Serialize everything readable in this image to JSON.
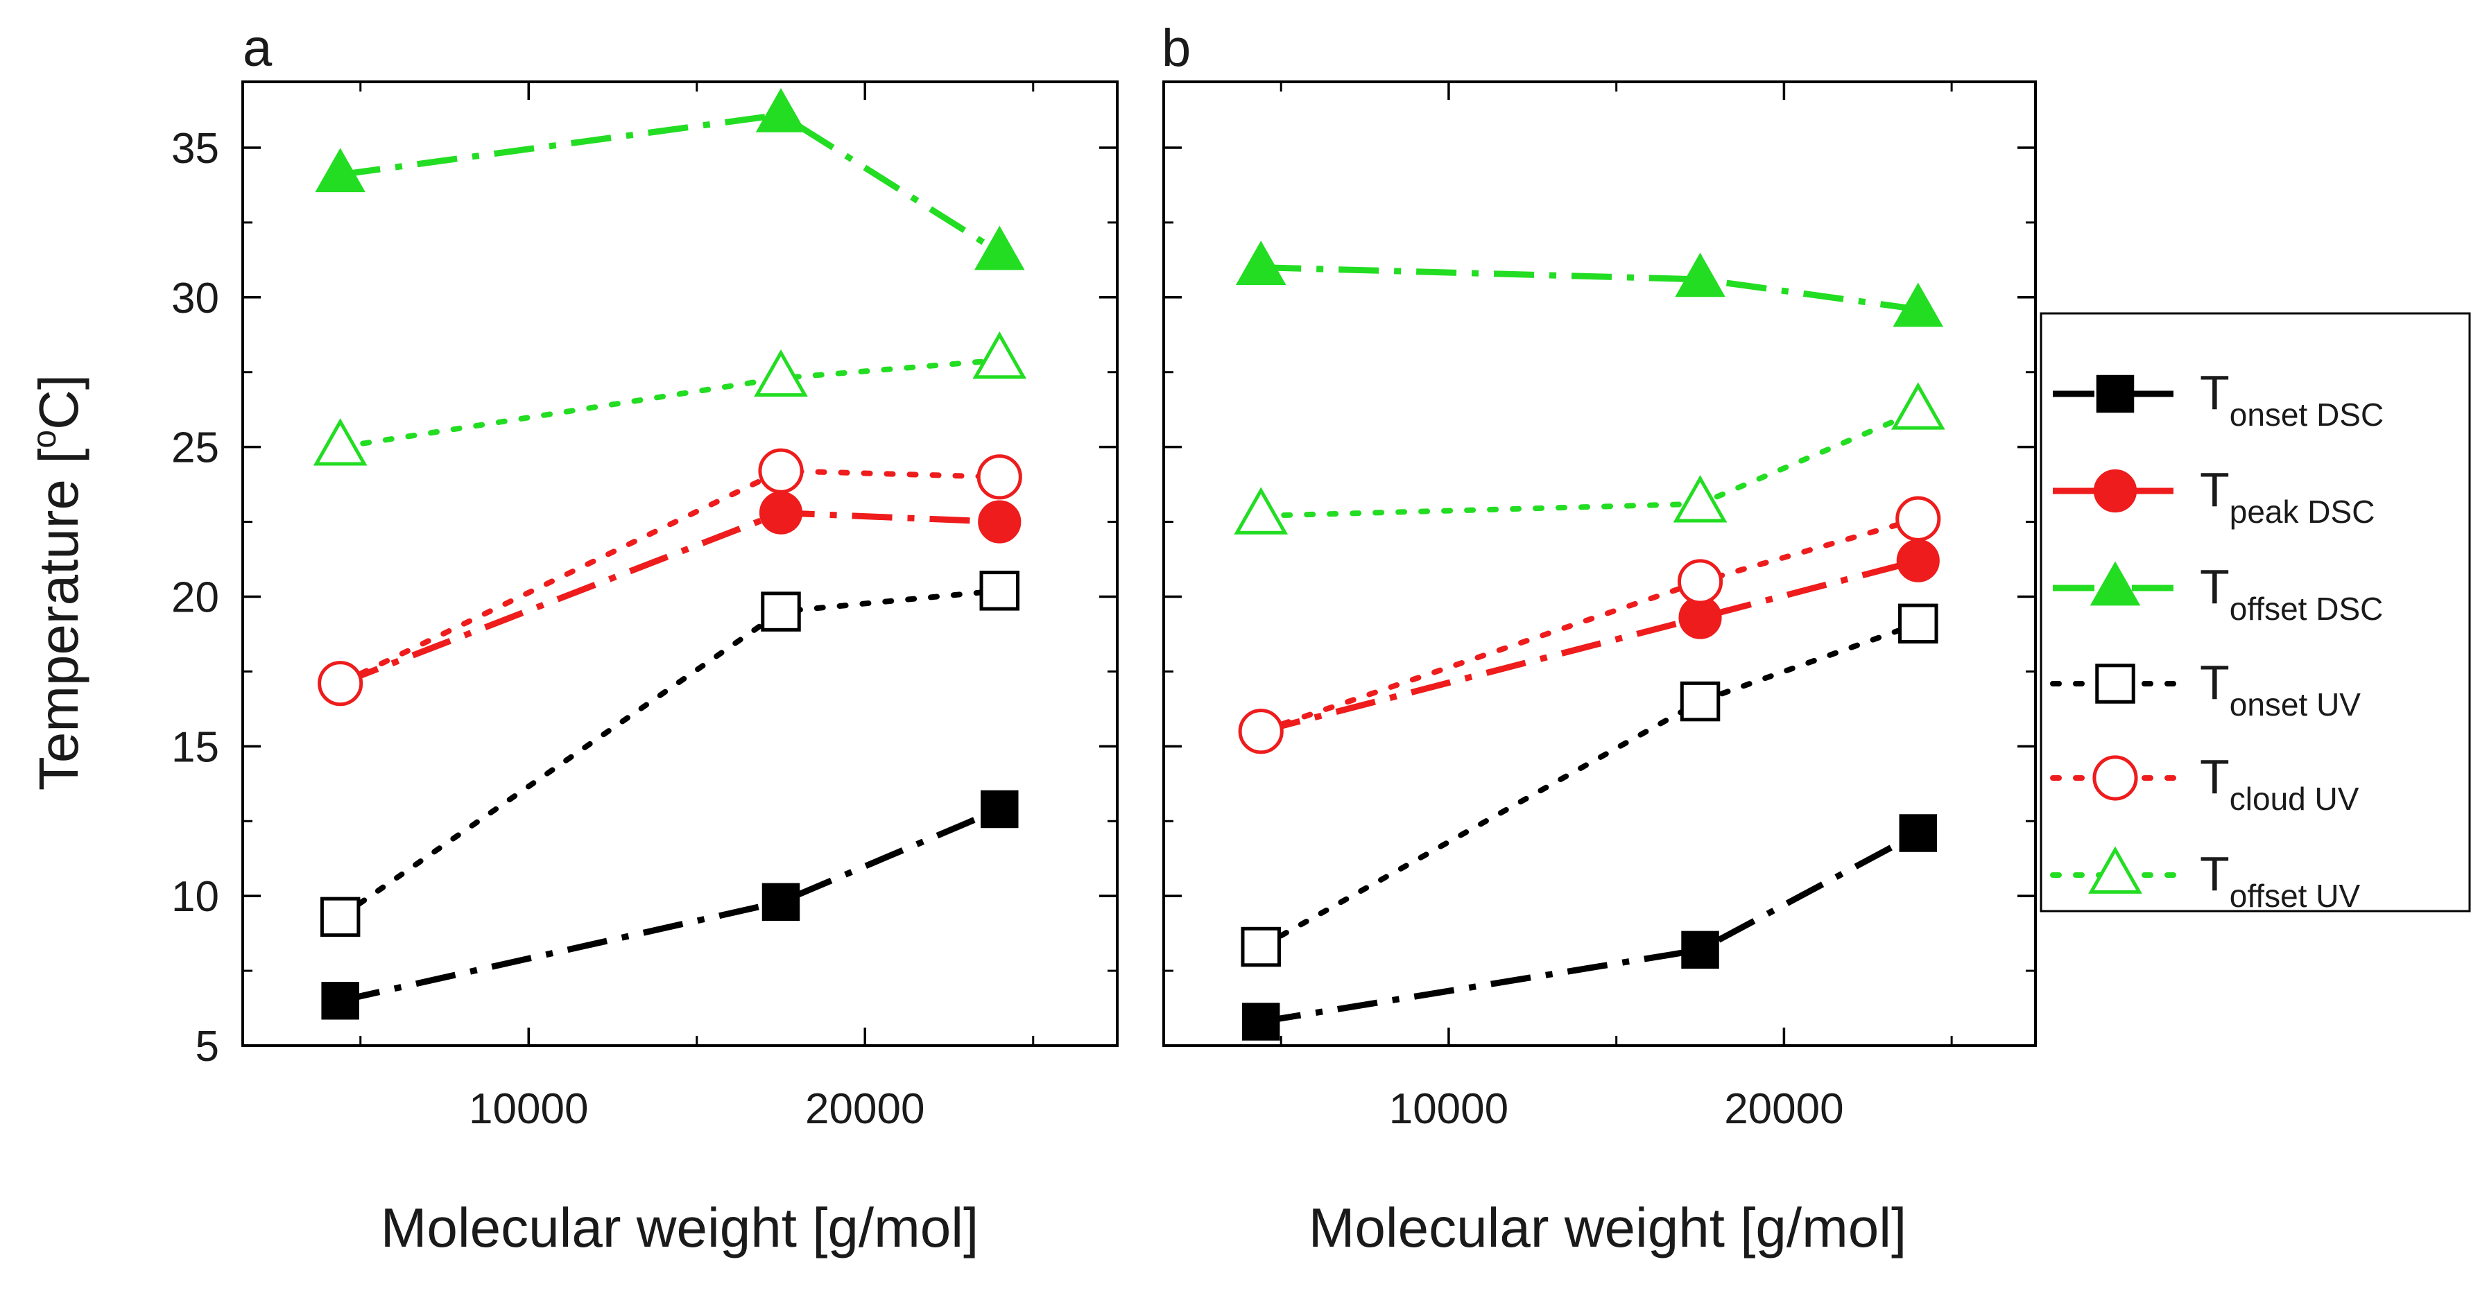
{
  "figure": {
    "panel_labels": [
      "a",
      "b"
    ],
    "y_label": "Temperature [",
    "y_label_sup": "o",
    "y_label_tail": "C]",
    "x_label": "Molecular weight [g/mol]"
  },
  "legend": [
    {
      "main": "T",
      "sub": "onset DSC"
    },
    {
      "main": "T",
      "sub": "peak  DSC"
    },
    {
      "main": "T",
      "sub": "offset DSC"
    },
    {
      "main": "T",
      "sub": "onset UV"
    },
    {
      "main": "T",
      "sub": "cloud UV"
    },
    {
      "main": "T",
      "sub": "offset UV"
    }
  ],
  "chart_data": [
    {
      "type": "line",
      "panel": "a",
      "xlabel": "Molecular weight [g/mol]",
      "ylabel": "Temperature [oC]",
      "xlim": [
        1500,
        27500
      ],
      "ylim": [
        5,
        37.2
      ],
      "x_ticks": [
        10000,
        20000
      ],
      "y_ticks": [
        5,
        10,
        15,
        20,
        25,
        30,
        35
      ],
      "x": [
        4400,
        17500,
        24000
      ],
      "series": [
        {
          "name": "T onset DSC",
          "color": "#000000",
          "marker": "square",
          "filled": true,
          "dash": "dashdot",
          "values": [
            6.5,
            9.8,
            12.9
          ]
        },
        {
          "name": "T peak DSC",
          "color": "#ee1c1c",
          "marker": "circle",
          "filled": true,
          "dash": "dashdot",
          "values": [
            17.1,
            22.8,
            22.5
          ]
        },
        {
          "name": "T offset DSC",
          "color": "#22dd22",
          "marker": "triangle",
          "filled": true,
          "dash": "dashdot",
          "values": [
            34.1,
            36.1,
            31.5
          ]
        },
        {
          "name": "T onset UV",
          "color": "#000000",
          "marker": "square",
          "filled": false,
          "dash": "dot",
          "values": [
            9.3,
            19.5,
            20.2
          ]
        },
        {
          "name": "T cloud UV",
          "color": "#ee1c1c",
          "marker": "circle",
          "filled": false,
          "dash": "dot",
          "values": [
            17.1,
            24.2,
            24.0
          ]
        },
        {
          "name": "T offset UV",
          "color": "#22dd22",
          "marker": "triangle",
          "filled": false,
          "dash": "dot",
          "values": [
            25.0,
            27.3,
            27.9
          ]
        }
      ]
    },
    {
      "type": "line",
      "panel": "b",
      "xlabel": "Molecular weight [g/mol]",
      "ylabel": "",
      "xlim": [
        1500,
        27500
      ],
      "ylim": [
        5,
        37.2
      ],
      "x_ticks": [
        10000,
        20000
      ],
      "y_ticks": [
        5,
        10,
        15,
        20,
        25,
        30,
        35
      ],
      "x": [
        4400,
        17500,
        24000
      ],
      "series": [
        {
          "name": "T onset DSC",
          "color": "#000000",
          "marker": "square",
          "filled": true,
          "dash": "dashdot",
          "values": [
            5.8,
            8.2,
            12.1
          ]
        },
        {
          "name": "T peak DSC",
          "color": "#ee1c1c",
          "marker": "circle",
          "filled": true,
          "dash": "dashdot",
          "values": [
            15.5,
            19.3,
            21.2
          ]
        },
        {
          "name": "T offset DSC",
          "color": "#22dd22",
          "marker": "triangle",
          "filled": true,
          "dash": "dashdot",
          "values": [
            31.0,
            30.6,
            29.6
          ]
        },
        {
          "name": "T onset UV",
          "color": "#000000",
          "marker": "square",
          "filled": false,
          "dash": "dot",
          "values": [
            8.3,
            16.5,
            19.1
          ]
        },
        {
          "name": "T cloud UV",
          "color": "#ee1c1c",
          "marker": "circle",
          "filled": false,
          "dash": "dot",
          "values": [
            15.5,
            20.5,
            22.6
          ]
        },
        {
          "name": "T offset UV",
          "color": "#22dd22",
          "marker": "triangle",
          "filled": false,
          "dash": "dot",
          "values": [
            22.7,
            23.1,
            26.2
          ]
        }
      ]
    }
  ]
}
